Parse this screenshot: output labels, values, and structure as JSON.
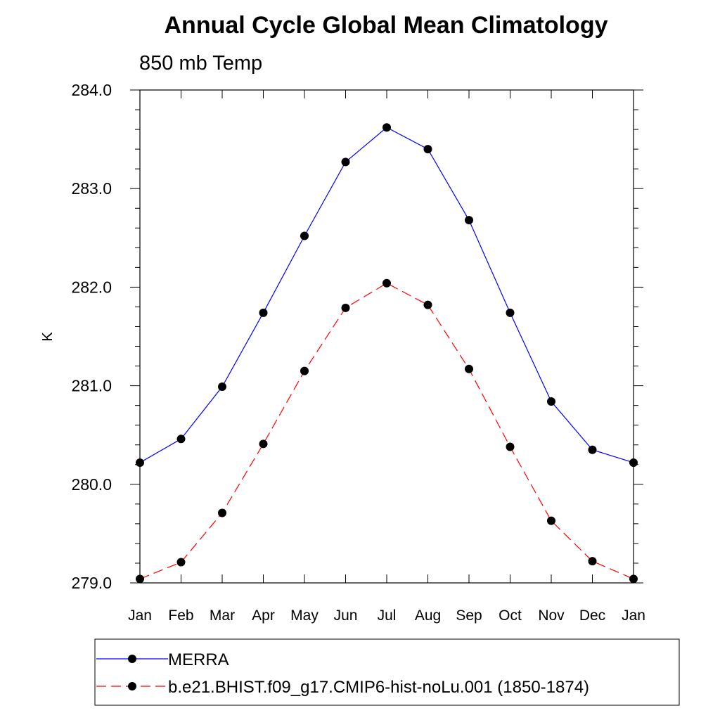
{
  "chart_data": {
    "type": "line",
    "title": "Annual Cycle Global Mean Climatology",
    "subtitle": "850 mb Temp",
    "xlabel": "",
    "ylabel": "K",
    "categories": [
      "Jan",
      "Feb",
      "Mar",
      "Apr",
      "May",
      "Jun",
      "Jul",
      "Aug",
      "Sep",
      "Oct",
      "Nov",
      "Dec",
      "Jan"
    ],
    "ylim": [
      279.0,
      284.0
    ],
    "yticks": [
      "279.0",
      "280.0",
      "281.0",
      "282.0",
      "283.0",
      "284.0"
    ],
    "grid": false,
    "legend_position": "bottom",
    "series": [
      {
        "name": "MERRA",
        "color": "#0000ff",
        "line_style": "solid",
        "marker": "filled-circle",
        "marker_color": "#000000",
        "values": [
          280.22,
          280.46,
          280.99,
          281.74,
          282.52,
          283.27,
          283.62,
          283.4,
          282.68,
          281.74,
          280.84,
          280.35,
          280.22
        ]
      },
      {
        "name": "b.e21.BHIST.f09_g17.CMIP6-hist-noLu.001 (1850-1874)",
        "color": "#ff0000",
        "line_style": "dashed",
        "marker": "filled-circle",
        "marker_color": "#000000",
        "values": [
          279.04,
          279.21,
          279.71,
          280.41,
          281.15,
          281.79,
          282.04,
          281.82,
          281.17,
          280.38,
          279.63,
          279.22,
          279.04
        ]
      }
    ]
  }
}
